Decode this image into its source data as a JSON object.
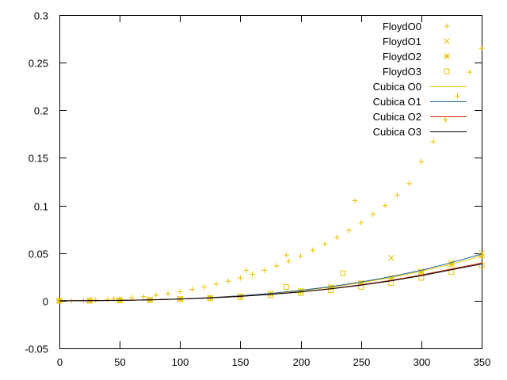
{
  "chart_data": {
    "type": "scatter",
    "title": "",
    "xlabel": "",
    "ylabel": "",
    "xlim": [
      0,
      350
    ],
    "ylim": [
      -0.05,
      0.3
    ],
    "xticks": [
      0,
      50,
      100,
      150,
      200,
      250,
      300,
      350
    ],
    "yticks": [
      -0.05,
      0,
      0.05,
      0.1,
      0.15,
      0.2,
      0.25,
      0.3
    ],
    "ytick_labels": [
      "-0.05",
      "0",
      "0.05",
      "0.1",
      "0.15",
      "0.2",
      "0.25",
      "0.3"
    ],
    "grid": false,
    "legend_position": "top-right",
    "series": [
      {
        "name": "FloydO0",
        "style": "points",
        "marker": "plus",
        "color": "#e8c400",
        "x": [
          0,
          10,
          20,
          30,
          40,
          45,
          50,
          60,
          70,
          80,
          90,
          100,
          110,
          120,
          130,
          140,
          150,
          155,
          160,
          170,
          180,
          188,
          190,
          200,
          210,
          220,
          230,
          240,
          245,
          250,
          260,
          270,
          280,
          290,
          300,
          310,
          320,
          330,
          340,
          350
        ],
        "y": [
          0,
          0,
          0.0003,
          0.0008,
          0.0014,
          0.002,
          0.0022,
          0.0032,
          0.0044,
          0.0058,
          0.0075,
          0.0095,
          0.0118,
          0.0144,
          0.0175,
          0.0205,
          0.024,
          0.032,
          0.0278,
          0.032,
          0.0365,
          0.048,
          0.0415,
          0.047,
          0.053,
          0.0595,
          0.0665,
          0.074,
          0.105,
          0.082,
          0.091,
          0.1,
          0.111,
          0.123,
          0.146,
          0.167,
          0.19,
          0.215,
          0.24,
          0.265
        ]
      },
      {
        "name": "FloydO1",
        "style": "points",
        "marker": "cross",
        "color": "#e8c400",
        "x": [
          0,
          25,
          50,
          75,
          100,
          125,
          150,
          175,
          200,
          225,
          250,
          275,
          300,
          325,
          350
        ],
        "y": [
          0,
          0,
          0.0004,
          0.001,
          0.0019,
          0.0032,
          0.005,
          0.0075,
          0.0105,
          0.0145,
          0.019,
          0.045,
          0.031,
          0.04,
          0.05
        ]
      },
      {
        "name": "FloydO2",
        "style": "points",
        "marker": "star",
        "color": "#e8c400",
        "x": [
          0,
          25,
          50,
          75,
          100,
          125,
          150,
          175,
          200,
          225,
          250,
          275,
          300,
          325,
          350
        ],
        "y": [
          0,
          0,
          0.0004,
          0.001,
          0.0019,
          0.0031,
          0.0048,
          0.0072,
          0.0102,
          0.014,
          0.0185,
          0.024,
          0.03,
          0.038,
          0.047
        ]
      },
      {
        "name": "FloydO3",
        "style": "points",
        "marker": "square",
        "color": "#e8c400",
        "x": [
          0,
          25,
          50,
          75,
          100,
          125,
          150,
          175,
          188,
          200,
          225,
          235,
          250,
          275,
          300,
          325,
          350
        ],
        "y": [
          0,
          0,
          0.0003,
          0.0008,
          0.0015,
          0.0025,
          0.0038,
          0.0056,
          0.0145,
          0.008,
          0.011,
          0.029,
          0.0145,
          0.0185,
          0.024,
          0.03,
          0.037
        ]
      },
      {
        "name": "Cubica O0",
        "style": "line",
        "color": "#e8c400",
        "x": [
          0,
          25,
          50,
          75,
          100,
          125,
          150,
          175,
          200,
          225,
          250,
          275,
          300,
          325,
          350
        ],
        "y": [
          0,
          0.0001,
          0.0004,
          0.001,
          0.0019,
          0.0032,
          0.005,
          0.0074,
          0.0105,
          0.0143,
          0.0189,
          0.0244,
          0.0308,
          0.0384,
          0.047
        ]
      },
      {
        "name": "Cubica O1",
        "style": "line",
        "color": "#1a6496",
        "x": [
          0,
          25,
          50,
          75,
          100,
          125,
          150,
          175,
          200,
          225,
          250,
          275,
          300,
          325,
          350
        ],
        "y": [
          0,
          0.0001,
          0.0004,
          0.001,
          0.0019,
          0.0033,
          0.0052,
          0.0077,
          0.0109,
          0.0148,
          0.0196,
          0.0253,
          0.032,
          0.04,
          0.049
        ]
      },
      {
        "name": "Cubica O2",
        "style": "line",
        "color": "#cc2200",
        "x": [
          0,
          25,
          50,
          75,
          100,
          125,
          150,
          175,
          200,
          225,
          250,
          275,
          300,
          325,
          350
        ],
        "y": [
          0,
          0.0001,
          0.0004,
          0.001,
          0.0018,
          0.003,
          0.0046,
          0.0067,
          0.0094,
          0.0127,
          0.0167,
          0.0214,
          0.027,
          0.0334,
          0.0395
        ]
      },
      {
        "name": "Cubica O3",
        "style": "line",
        "color": "#000000",
        "x": [
          0,
          25,
          50,
          75,
          100,
          125,
          150,
          175,
          200,
          225,
          250,
          275,
          300,
          325,
          350
        ],
        "y": [
          0,
          0.0001,
          0.0003,
          0.0009,
          0.0017,
          0.0029,
          0.0045,
          0.0066,
          0.0092,
          0.0124,
          0.0163,
          0.0209,
          0.0263,
          0.0325,
          0.0385
        ]
      }
    ]
  }
}
